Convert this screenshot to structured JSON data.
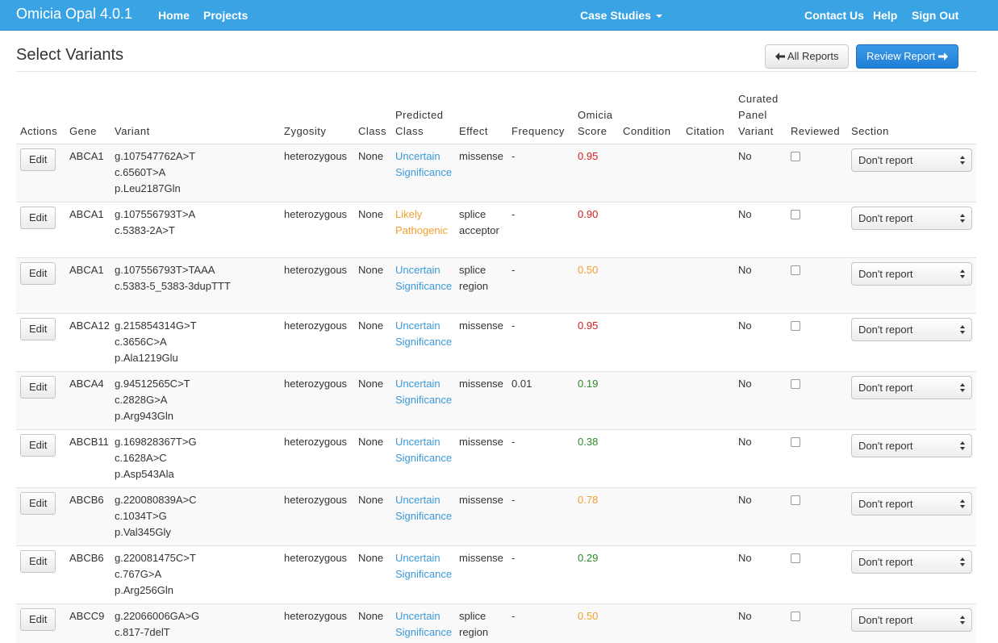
{
  "navbar": {
    "brand": "Omicia Opal 4.0.1",
    "home": "Home",
    "projects": "Projects",
    "case_studies": "Case Studies",
    "contact_us": "Contact Us",
    "help": "Help",
    "sign_out": "Sign Out",
    "accent_color": "#3aa3e3"
  },
  "page": {
    "title": "Select Variants",
    "all_reports_label": "All Reports",
    "review_report_label": "Review Report"
  },
  "table": {
    "headers": {
      "actions": "Actions",
      "gene": "Gene",
      "variant": "Variant",
      "zygosity": "Zygosity",
      "class": "Class",
      "predicted_class_1": "Predicted",
      "predicted_class_2": "Class",
      "effect": "Effect",
      "frequency": "Frequency",
      "omicia_score_1": "Omicia",
      "omicia_score_2": "Score",
      "condition": "Condition",
      "citation": "Citation",
      "curated_1": "Curated",
      "curated_2": "Panel",
      "curated_3": "Variant",
      "reviewed": "Reviewed",
      "section": "Section"
    },
    "edit_label": "Edit",
    "section_value": "Don't report",
    "rows": [
      {
        "gene": "ABCA1",
        "v1": "g.107547762A>T",
        "v2": "c.6560T>A",
        "v3": "p.Leu2187Gln",
        "zygosity": "heterozygous",
        "class": "None",
        "pc1": "Uncertain",
        "pc2": "Significance",
        "effect1": "missense",
        "effect2": "",
        "frequency": "-",
        "score": "0.95",
        "curated": "No"
      },
      {
        "gene": "ABCA1",
        "v1": "g.107556793T>A",
        "v2": "c.5383-2A>T",
        "v3": "",
        "zygosity": "heterozygous",
        "class": "None",
        "pc1": "Likely",
        "pc2": "Pathogenic",
        "effect1": "splice",
        "effect2": "acceptor",
        "frequency": "-",
        "score": "0.90",
        "curated": "No"
      },
      {
        "gene": "ABCA1",
        "v1": "g.107556793T>TAAA",
        "v2": "c.5383-5_5383-3dupTTT",
        "v3": "",
        "zygosity": "heterozygous",
        "class": "None",
        "pc1": "Uncertain",
        "pc2": "Significance",
        "effect1": "splice",
        "effect2": "region",
        "frequency": "-",
        "score": "0.50",
        "curated": "No"
      },
      {
        "gene": "ABCA12",
        "v1": "g.215854314G>T",
        "v2": "c.3656C>A",
        "v3": "p.Ala1219Glu",
        "zygosity": "heterozygous",
        "class": "None",
        "pc1": "Uncertain",
        "pc2": "Significance",
        "effect1": "missense",
        "effect2": "",
        "frequency": "-",
        "score": "0.95",
        "curated": "No"
      },
      {
        "gene": "ABCA4",
        "v1": "g.94512565C>T",
        "v2": "c.2828G>A",
        "v3": "p.Arg943Gln",
        "zygosity": "heterozygous",
        "class": "None",
        "pc1": "Uncertain",
        "pc2": "Significance",
        "effect1": "missense",
        "effect2": "",
        "frequency": "0.01",
        "score": "0.19",
        "curated": "No"
      },
      {
        "gene": "ABCB11",
        "v1": "g.169828367T>G",
        "v2": "c.1628A>C",
        "v3": "p.Asp543Ala",
        "zygosity": "heterozygous",
        "class": "None",
        "pc1": "Uncertain",
        "pc2": "Significance",
        "effect1": "missense",
        "effect2": "",
        "frequency": "-",
        "score": "0.38",
        "curated": "No"
      },
      {
        "gene": "ABCB6",
        "v1": "g.220080839A>C",
        "v2": "c.1034T>G",
        "v3": "p.Val345Gly",
        "zygosity": "heterozygous",
        "class": "None",
        "pc1": "Uncertain",
        "pc2": "Significance",
        "effect1": "missense",
        "effect2": "",
        "frequency": "-",
        "score": "0.78",
        "curated": "No"
      },
      {
        "gene": "ABCB6",
        "v1": "g.220081475C>T",
        "v2": "c.767G>A",
        "v3": "p.Arg256Gln",
        "zygosity": "heterozygous",
        "class": "None",
        "pc1": "Uncertain",
        "pc2": "Significance",
        "effect1": "missense",
        "effect2": "",
        "frequency": "-",
        "score": "0.29",
        "curated": "No"
      },
      {
        "gene": "ABCC9",
        "v1": "g.22066006GA>G",
        "v2": "c.817-7delT",
        "v3": "",
        "zygosity": "heterozygous",
        "class": "None",
        "pc1": "Uncertain",
        "pc2": "Significance",
        "effect1": "splice",
        "effect2": "region",
        "frequency": "-",
        "score": "0.50",
        "curated": "No"
      }
    ]
  }
}
